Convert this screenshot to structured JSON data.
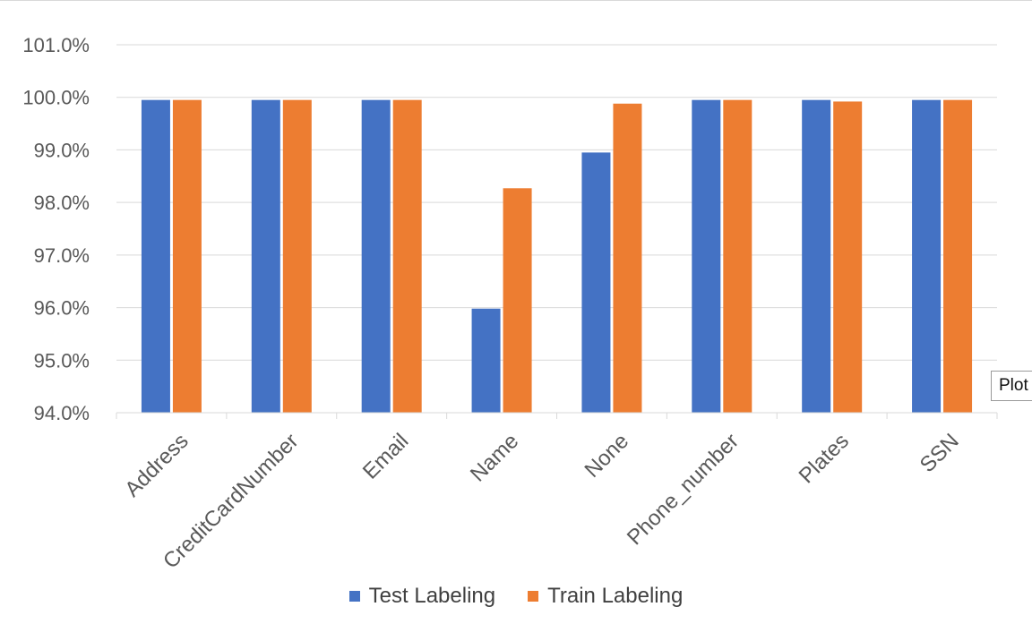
{
  "colors": {
    "series1": "#4472c4",
    "series2": "#ed7d31",
    "grid": "#d9d9d9",
    "text": "#595959"
  },
  "chart_data": {
    "type": "bar",
    "title": "",
    "xlabel": "",
    "ylabel": "",
    "categories": [
      "Address",
      "CreditCardNumber",
      "Email",
      "Name",
      "None",
      "Phone_number",
      "Plates",
      "SSN"
    ],
    "series": [
      {
        "name": "Test Labeling",
        "values": [
          99.95,
          99.95,
          99.95,
          95.98,
          98.95,
          99.95,
          99.95,
          99.95
        ]
      },
      {
        "name": "Train Labeling",
        "values": [
          99.95,
          99.95,
          99.95,
          98.27,
          99.88,
          99.95,
          99.92,
          99.95
        ]
      }
    ],
    "ylim": [
      94.0,
      101.0
    ],
    "yticks": [
      "94.0%",
      "95.0%",
      "96.0%",
      "97.0%",
      "98.0%",
      "99.0%",
      "100.0%",
      "101.0%"
    ],
    "grid": true,
    "legend_position": "bottom"
  },
  "tooltip": {
    "text": "Plot"
  }
}
